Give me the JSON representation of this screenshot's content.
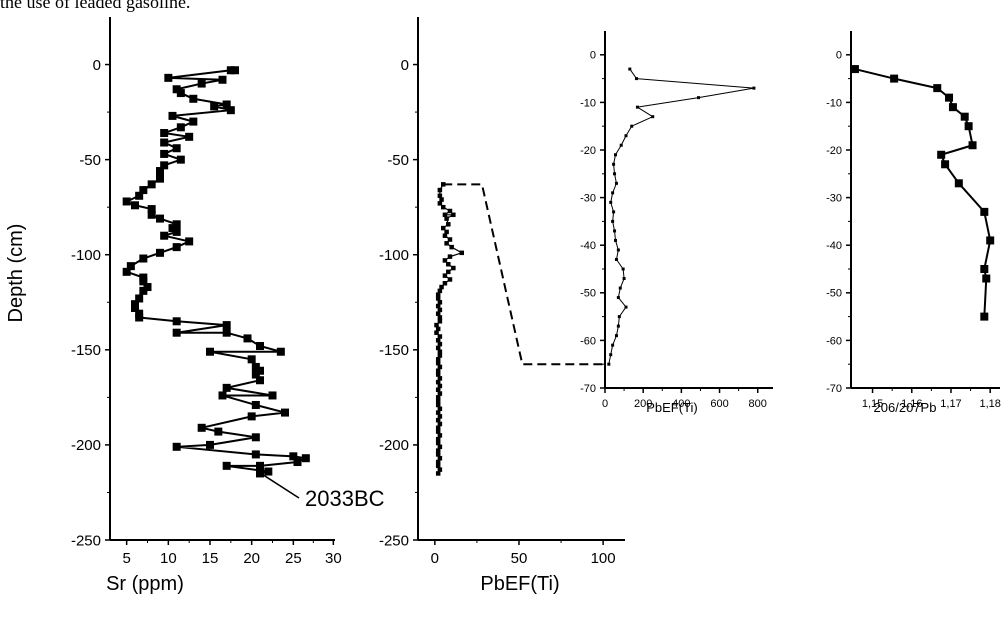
{
  "caption_fragment": "the use of leaded gasoline.",
  "chart_data": [
    {
      "type": "line",
      "title": "",
      "xlabel": "Sr (ppm)",
      "ylabel": "Depth (cm)",
      "xlim": [
        3,
        30
      ],
      "ylim": [
        -250,
        25
      ],
      "x_ticks": [
        "5",
        "10",
        "15",
        "20",
        "25",
        "30"
      ],
      "y_ticks": [
        "0",
        "-50",
        "-100",
        "-150",
        "-200",
        "-250"
      ],
      "annotation": "2033BC",
      "series": [
        {
          "marker": "square",
          "points": [
            [
              18,
              -3
            ],
            [
              17.5,
              -3
            ],
            [
              10,
              -7
            ],
            [
              16.5,
              -8
            ],
            [
              14,
              -10
            ],
            [
              11,
              -13
            ],
            [
              11.5,
              -15
            ],
            [
              13,
              -18
            ],
            [
              17,
              -21
            ],
            [
              15.5,
              -22
            ],
            [
              17.5,
              -24
            ],
            [
              10.5,
              -27
            ],
            [
              13,
              -30
            ],
            [
              11.5,
              -33
            ],
            [
              9.5,
              -36
            ],
            [
              12.5,
              -38
            ],
            [
              9.5,
              -41
            ],
            [
              11,
              -44
            ],
            [
              9.5,
              -47
            ],
            [
              11.5,
              -50
            ],
            [
              9.5,
              -53
            ],
            [
              9,
              -56
            ],
            [
              9,
              -60
            ],
            [
              8,
              -63
            ],
            [
              7,
              -66
            ],
            [
              6.5,
              -69
            ],
            [
              5,
              -72
            ],
            [
              6,
              -74
            ],
            [
              8,
              -76
            ],
            [
              8,
              -79
            ],
            [
              9,
              -81
            ],
            [
              11,
              -84
            ],
            [
              10.5,
              -86
            ],
            [
              11,
              -88
            ],
            [
              9.5,
              -90
            ],
            [
              12.5,
              -93
            ],
            [
              11,
              -96
            ],
            [
              9,
              -99
            ],
            [
              7,
              -102
            ],
            [
              5.5,
              -106
            ],
            [
              5,
              -109
            ],
            [
              7,
              -112
            ],
            [
              7,
              -114
            ],
            [
              7.5,
              -117
            ],
            [
              7,
              -119
            ],
            [
              6.5,
              -123
            ],
            [
              6,
              -126
            ],
            [
              6,
              -128
            ],
            [
              6.5,
              -131
            ],
            [
              6.5,
              -133
            ],
            [
              11,
              -135
            ],
            [
              17,
              -137
            ],
            [
              11,
              -141
            ],
            [
              17,
              -141
            ],
            [
              19.5,
              -144
            ],
            [
              21,
              -148
            ],
            [
              23.5,
              -151
            ],
            [
              15,
              -151
            ],
            [
              20,
              -155
            ],
            [
              20.5,
              -159
            ],
            [
              21,
              -161
            ],
            [
              20.5,
              -163
            ],
            [
              21,
              -166
            ],
            [
              17,
              -170
            ],
            [
              22.5,
              -174
            ],
            [
              16.5,
              -174
            ],
            [
              20.5,
              -179
            ],
            [
              24,
              -183
            ],
            [
              20,
              -185
            ],
            [
              14,
              -191
            ],
            [
              16,
              -193
            ],
            [
              20.5,
              -196
            ],
            [
              15,
              -200
            ],
            [
              11,
              -201
            ],
            [
              20.5,
              -205
            ],
            [
              25,
              -206
            ],
            [
              26.5,
              -207
            ],
            [
              25.5,
              -209
            ],
            [
              21,
              -211
            ],
            [
              17,
              -211
            ],
            [
              22,
              -214
            ],
            [
              21,
              -215
            ]
          ]
        }
      ]
    },
    {
      "type": "line",
      "title": "",
      "xlabel": "PbEF(Ti)",
      "ylabel": "",
      "xlim": [
        -10,
        113
      ],
      "ylim": [
        -250,
        25
      ],
      "x_ticks": [
        "0",
        "50",
        "100"
      ],
      "y_ticks": [
        "0",
        "-50",
        "-100",
        "-150",
        "-200",
        "-250"
      ],
      "series": [
        {
          "marker": "small-square",
          "points": [
            [
              5,
              -63
            ],
            [
              3,
              -66
            ],
            [
              3,
              -69
            ],
            [
              4,
              -71
            ],
            [
              3,
              -73
            ],
            [
              5,
              -75
            ],
            [
              9,
              -77
            ],
            [
              6,
              -79
            ],
            [
              11,
              -79
            ],
            [
              7,
              -81
            ],
            [
              8,
              -84
            ],
            [
              5,
              -86
            ],
            [
              7,
              -88
            ],
            [
              6,
              -90
            ],
            [
              9,
              -92
            ],
            [
              7,
              -94
            ],
            [
              10,
              -96
            ],
            [
              16,
              -99
            ],
            [
              9,
              -101
            ],
            [
              6,
              -103
            ],
            [
              8,
              -105
            ],
            [
              11,
              -107
            ],
            [
              8,
              -109
            ],
            [
              6,
              -111
            ],
            [
              9,
              -113
            ],
            [
              6,
              -115
            ],
            [
              4,
              -117
            ],
            [
              3,
              -119
            ],
            [
              2,
              -121
            ],
            [
              2,
              -123
            ],
            [
              3,
              -125
            ],
            [
              2,
              -127
            ],
            [
              3,
              -129
            ],
            [
              2,
              -131
            ],
            [
              3,
              -133
            ],
            [
              3,
              -135
            ],
            [
              1,
              -137
            ],
            [
              2,
              -139
            ],
            [
              1,
              -141
            ],
            [
              3,
              -143
            ],
            [
              2,
              -145
            ],
            [
              3,
              -147
            ],
            [
              2,
              -149
            ],
            [
              3,
              -151
            ],
            [
              3,
              -153
            ],
            [
              2,
              -155
            ],
            [
              2,
              -157
            ],
            [
              3,
              -159
            ],
            [
              2,
              -161
            ],
            [
              2,
              -163
            ],
            [
              3,
              -165
            ],
            [
              2,
              -167
            ],
            [
              3,
              -169
            ],
            [
              2,
              -171
            ],
            [
              3,
              -173
            ],
            [
              2,
              -175
            ],
            [
              2,
              -177
            ],
            [
              2,
              -179
            ],
            [
              3,
              -181
            ],
            [
              2,
              -183
            ],
            [
              3,
              -185
            ],
            [
              2,
              -187
            ],
            [
              3,
              -189
            ],
            [
              2,
              -191
            ],
            [
              2,
              -193
            ],
            [
              3,
              -195
            ],
            [
              2,
              -197
            ],
            [
              2,
              -199
            ],
            [
              3,
              -201
            ],
            [
              2,
              -203
            ],
            [
              2,
              -205
            ],
            [
              3,
              -207
            ],
            [
              2,
              -209
            ],
            [
              2,
              -211
            ],
            [
              3,
              -213
            ],
            [
              2,
              -215
            ]
          ]
        }
      ]
    },
    {
      "type": "line",
      "title": "",
      "xlabel": "PbEF(Ti)",
      "ylabel": "",
      "xlim": [
        0,
        880
      ],
      "ylim": [
        -70,
        5
      ],
      "x_ticks": [
        "0",
        "200",
        "400",
        "600",
        "800"
      ],
      "y_ticks": [
        "0",
        "-10",
        "-20",
        "-30",
        "-40",
        "-50",
        "-60",
        "-70"
      ],
      "series": [
        {
          "marker": "dot",
          "points": [
            [
              130,
              -3
            ],
            [
              165,
              -5
            ],
            [
              780,
              -7
            ],
            [
              490,
              -9
            ],
            [
              170,
              -11
            ],
            [
              250,
              -13
            ],
            [
              140,
              -15
            ],
            [
              110,
              -17
            ],
            [
              85,
              -19
            ],
            [
              55,
              -21
            ],
            [
              45,
              -23
            ],
            [
              50,
              -25
            ],
            [
              60,
              -27
            ],
            [
              40,
              -29
            ],
            [
              30,
              -31
            ],
            [
              45,
              -33
            ],
            [
              40,
              -35
            ],
            [
              50,
              -37
            ],
            [
              55,
              -39
            ],
            [
              70,
              -41
            ],
            [
              60,
              -43
            ],
            [
              95,
              -45
            ],
            [
              100,
              -47
            ],
            [
              80,
              -49
            ],
            [
              70,
              -51
            ],
            [
              110,
              -53
            ],
            [
              75,
              -55
            ],
            [
              70,
              -57
            ],
            [
              60,
              -59
            ],
            [
              40,
              -61
            ],
            [
              30,
              -63
            ],
            [
              20,
              -65
            ]
          ]
        }
      ]
    },
    {
      "type": "line",
      "title": "",
      "xlabel": "206/207Pb",
      "ylabel": "",
      "xlim": [
        1.1445,
        1.1825
      ],
      "ylim": [
        -70,
        5
      ],
      "x_ticks": [
        "1,15",
        "1,16",
        "1,17",
        "1,18"
      ],
      "y_ticks": [
        "0",
        "-10",
        "-20",
        "-30",
        "-40",
        "-50",
        "-60",
        "-70"
      ],
      "series": [
        {
          "marker": "square",
          "points": [
            [
              1.1455,
              -3
            ],
            [
              1.1555,
              -5
            ],
            [
              1.1665,
              -7
            ],
            [
              1.1695,
              -9
            ],
            [
              1.1705,
              -11
            ],
            [
              1.1735,
              -13
            ],
            [
              1.1745,
              -15
            ],
            [
              1.1755,
              -19
            ],
            [
              1.1675,
              -21
            ],
            [
              1.1685,
              -23
            ],
            [
              1.172,
              -27
            ],
            [
              1.1785,
              -33
            ],
            [
              1.18,
              -39
            ],
            [
              1.1785,
              -45
            ],
            [
              1.179,
              -47
            ],
            [
              1.1785,
              -55
            ]
          ]
        }
      ]
    }
  ]
}
